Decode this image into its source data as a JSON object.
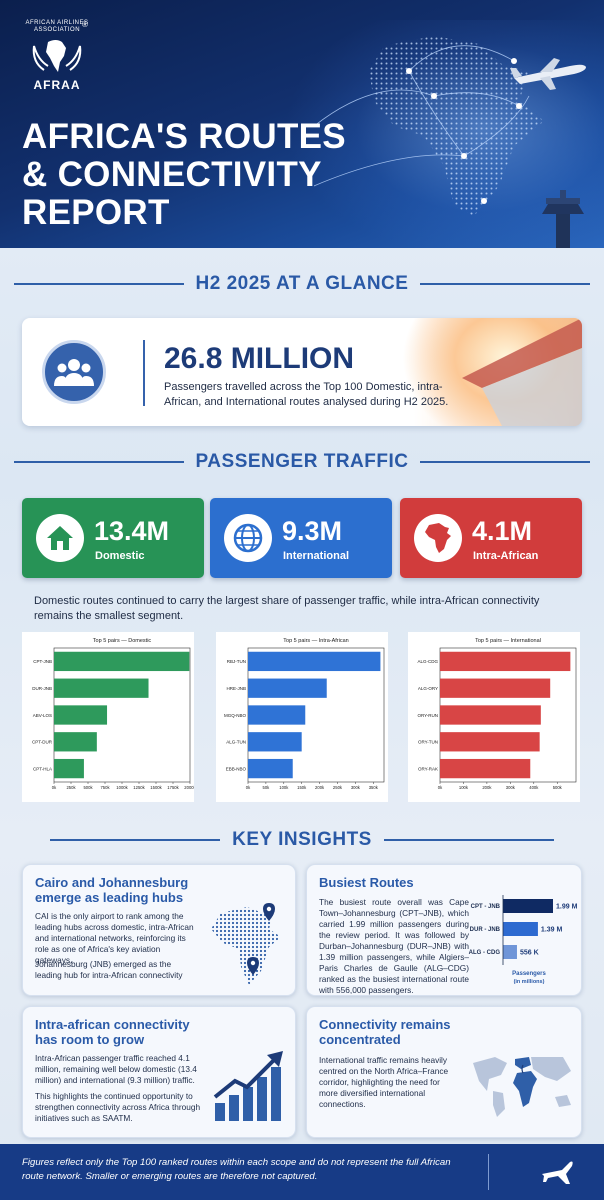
{
  "header": {
    "logo_arc_text": "AFRICAN AIRLINES ASSOCIATION",
    "logo_name": "AFRAA",
    "logo_reg": "®",
    "title_lines": [
      "AFRICA'S ROUTES",
      "& CONNECTIVITY",
      "REPORT"
    ]
  },
  "glance": {
    "heading": "H2 2025 AT A GLANCE",
    "icon": "people-icon",
    "value": "26.8 MILLION",
    "description": "Passengers travelled across the Top 100 Domestic, intra-African, and International routes analysed during H2 2025."
  },
  "traffic": {
    "heading": "PASSENGER TRAFFIC",
    "stats": [
      {
        "value": "13.4M",
        "label": "Domestic",
        "icon": "house-icon",
        "color": "#279356"
      },
      {
        "value": "9.3M",
        "label": "International",
        "icon": "globe-icon",
        "color": "#2c6fcf"
      },
      {
        "value": "4.1M",
        "label": "Intra-African",
        "icon": "africa-icon",
        "color": "#d13c3c"
      }
    ],
    "note": "Domestic routes continued to carry the largest share of passenger traffic, while intra-African connectivity remains the smallest segment."
  },
  "chart_data": [
    {
      "type": "bar",
      "orientation": "horizontal",
      "title": "Top 5 pairs — Domestic",
      "categories": [
        "CPT-JNB",
        "DUR-JNB",
        "ABV-LOS",
        "CPT-DUR",
        "CPT-HLA"
      ],
      "values": [
        1990000,
        1390000,
        780000,
        630000,
        440000
      ],
      "xlim": [
        0,
        2000000
      ],
      "x_ticks": [
        "0k",
        "250k",
        "500k",
        "750k",
        "1000k",
        "1250k",
        "1500k",
        "1750k",
        "2000k"
      ],
      "color": "#2e9a5c"
    },
    {
      "type": "bar",
      "orientation": "horizontal",
      "title": "Top 5 pairs — Intra-African",
      "categories": [
        "RBJ-TUN",
        "HRE-JNB",
        "MGQ-NBO",
        "ALG-TUN",
        "EBB-NBO"
      ],
      "values": [
        370000,
        220000,
        160000,
        150000,
        125000
      ],
      "xlim": [
        0,
        380000
      ],
      "x_ticks": [
        "0k",
        "50k",
        "100k",
        "150k",
        "200k",
        "250k",
        "300k",
        "350k"
      ],
      "color": "#2f73d6"
    },
    {
      "type": "bar",
      "orientation": "horizontal",
      "title": "Top 5 pairs — International",
      "categories": [
        "ALG-CDG",
        "ALG-ORY",
        "ORY-RUN",
        "ORY-TUN",
        "ORY-RAK"
      ],
      "values": [
        556000,
        470000,
        430000,
        425000,
        385000
      ],
      "xlim": [
        0,
        580000
      ],
      "x_ticks": [
        "0k",
        "100k",
        "200k",
        "300k",
        "400k",
        "500k"
      ],
      "color": "#d84545"
    },
    {
      "type": "bar",
      "orientation": "horizontal",
      "title": "",
      "xlabel": "Passengers (in millions)",
      "categories": [
        "CPT - JNB",
        "DUR - JNB",
        "ALG - CDG"
      ],
      "values": [
        1.99,
        1.39,
        0.556
      ],
      "value_labels": [
        "1.99 M",
        "1.39 M",
        "556 K"
      ],
      "colors": [
        "#0f2a63",
        "#2d6ad0",
        "#6f95d8"
      ]
    }
  ],
  "insights": {
    "heading": "KEY INSIGHTS",
    "hubs": {
      "title_lines": [
        "Cairo and Johannesburg",
        "emerge as leading hubs"
      ],
      "p1": "CAI is the only airport to rank among the leading hubs across domestic, intra-African and international networks, reinforcing its role as one of Africa's key aviation gateways.",
      "p2": "Johannesburg (JNB) emerged as the leading hub for intra-African connectivity"
    },
    "busiest": {
      "title": "Busiest Routes",
      "p": "The busiest route overall was Cape Town–Johannesburg (CPT–JNB), which carried 1.99 million passengers during the review period. It was followed by Durban–Johannesburg (DUR–JNB) with 1.39 million passengers, while Algiers–Paris Charles de Gaulle (ALG–CDG) ranked as the busiest international route with 556,000 passengers.",
      "axis_label_lines": [
        "Passengers",
        "(in millions)"
      ]
    },
    "intra": {
      "title_lines": [
        "Intra-african connectivity",
        "has room to grow"
      ],
      "p1": "Intra-African passenger traffic reached 4.1 million, remaining well below domestic (13.4 million) and international (9.3 million) traffic.",
      "p2": "This highlights the continued opportunity to strengthen connectivity across Africa through initiatives such as SAATM."
    },
    "concentrated": {
      "title_lines": [
        "Connectivity remains",
        "concentrated"
      ],
      "p": "International traffic remains heavily centred on the North Africa–France corridor, highlighting the need for more diversified international connections."
    }
  },
  "footer": {
    "text": "Figures reflect only the Top 100 ranked routes within each scope and do not represent the full African route network. Smaller or emerging routes are therefore not captured."
  }
}
